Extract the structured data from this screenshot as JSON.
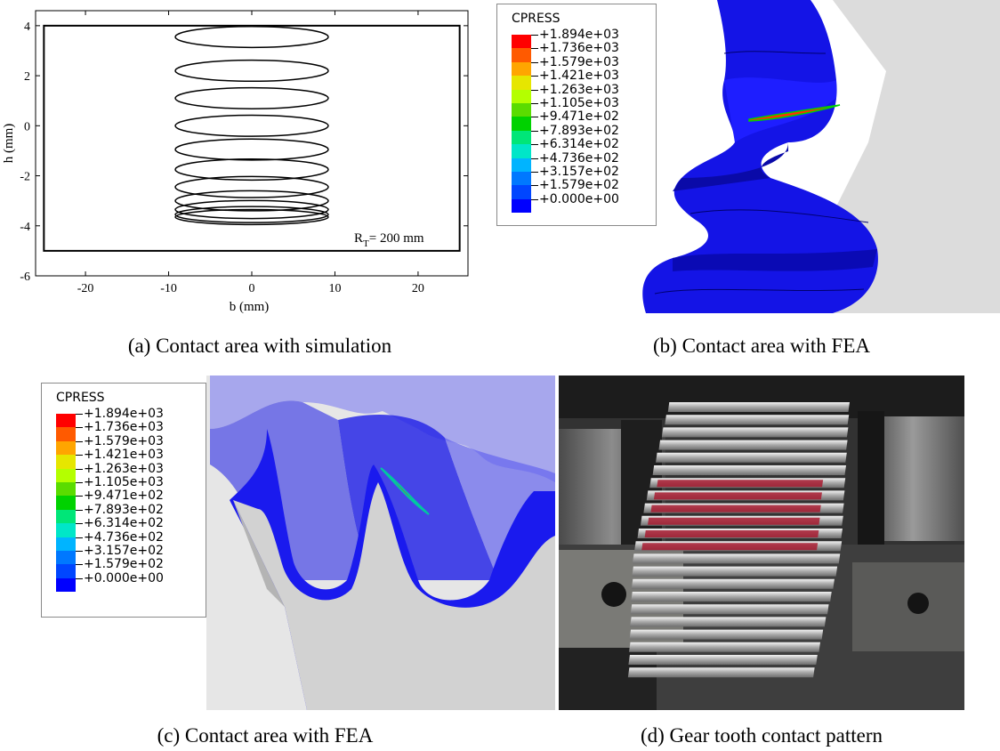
{
  "panel_a": {
    "caption": "(a) Contact area with simulation",
    "annotation_main": "R",
    "annotation_sub": "T",
    "annotation_rest": "= 200 mm",
    "chart_data": {
      "type": "scatter",
      "xlabel": "b (mm)",
      "ylabel": "h (mm)",
      "xlim": [
        -26,
        26
      ],
      "ylim": [
        -6,
        4.6
      ],
      "xticks": [
        -20,
        -10,
        0,
        10,
        20
      ],
      "yticks": [
        -6,
        -4,
        -2,
        0,
        2,
        4
      ],
      "grid": false,
      "boundary_rectangle": {
        "x": [
          -25,
          25
        ],
        "y": [
          -5,
          4
        ]
      },
      "ellipses": [
        {
          "cx": 0,
          "cy": 3.55,
          "rx": 9.2,
          "ry": 0.42
        },
        {
          "cx": 0,
          "cy": 2.2,
          "rx": 9.2,
          "ry": 0.42
        },
        {
          "cx": 0,
          "cy": 1.1,
          "rx": 9.2,
          "ry": 0.42
        },
        {
          "cx": 0,
          "cy": 0.0,
          "rx": 9.2,
          "ry": 0.42
        },
        {
          "cx": 0,
          "cy": -0.95,
          "rx": 9.2,
          "ry": 0.42
        },
        {
          "cx": 0,
          "cy": -1.75,
          "rx": 9.2,
          "ry": 0.42
        },
        {
          "cx": 0,
          "cy": -2.45,
          "rx": 9.2,
          "ry": 0.42
        },
        {
          "cx": 0,
          "cy": -3.0,
          "rx": 9.2,
          "ry": 0.4
        },
        {
          "cx": 0,
          "cy": -3.35,
          "rx": 9.2,
          "ry": 0.36
        },
        {
          "cx": 0,
          "cy": -3.55,
          "rx": 9.2,
          "ry": 0.32
        },
        {
          "cx": 0,
          "cy": -3.65,
          "rx": 9.2,
          "ry": 0.3
        }
      ]
    }
  },
  "panel_b": {
    "caption": "(b) Contact area with FEA",
    "legend_title": "CPRESS",
    "legend_values": [
      "+1.894e+03",
      "+1.736e+03",
      "+1.579e+03",
      "+1.421e+03",
      "+1.263e+03",
      "+1.105e+03",
      "+9.471e+02",
      "+7.893e+02",
      "+6.314e+02",
      "+4.736e+02",
      "+3.157e+02",
      "+1.579e+02",
      "+0.000e+00"
    ]
  },
  "panel_c": {
    "caption": "(c) Contact area with FEA",
    "legend_title": "CPRESS",
    "legend_values": [
      "+1.894e+03",
      "+1.736e+03",
      "+1.579e+03",
      "+1.421e+03",
      "+1.263e+03",
      "+1.105e+03",
      "+9.471e+02",
      "+7.893e+02",
      "+6.314e+02",
      "+4.736e+02",
      "+3.157e+02",
      "+1.579e+02",
      "+0.000e+00"
    ]
  },
  "panel_d": {
    "caption": "(d) Gear tooth contact pattern"
  },
  "legend_colors": [
    "#ff0000",
    "#ff5a00",
    "#ffa500",
    "#e6e600",
    "#b4ff00",
    "#5adc00",
    "#00d200",
    "#00e678",
    "#00e6c8",
    "#00b4ff",
    "#0078ff",
    "#0046ff",
    "#0000ff"
  ]
}
